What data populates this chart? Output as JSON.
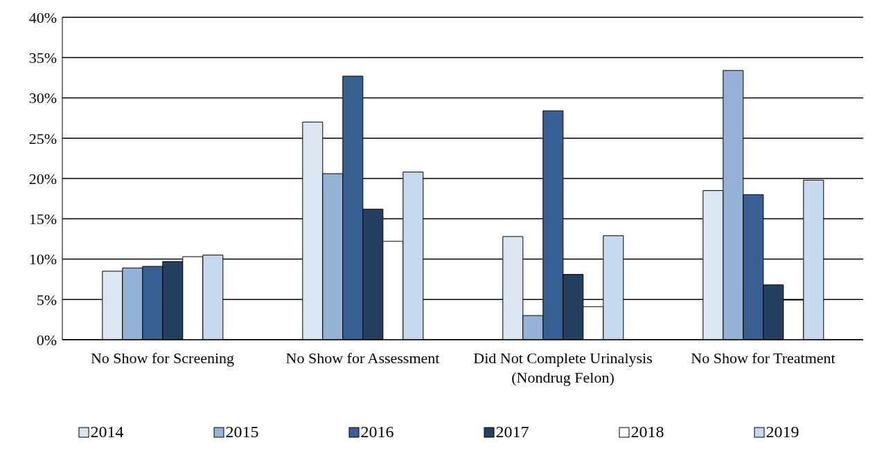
{
  "chart_data": {
    "type": "bar",
    "categories": [
      "No Show for Screening",
      "No Show for Assessment",
      "Did Not Complete Urinalysis (Nondrug Felon)",
      "No Show for Treatment"
    ],
    "series": [
      {
        "name": "2014",
        "color": "#dce6f2",
        "values": [
          8.5,
          27.0,
          12.8,
          18.5
        ]
      },
      {
        "name": "2015",
        "color": "#95b3d7",
        "values": [
          8.9,
          20.6,
          3.0,
          33.4
        ]
      },
      {
        "name": "2016",
        "color": "#376092",
        "values": [
          9.1,
          32.7,
          28.4,
          18.0
        ]
      },
      {
        "name": "2017",
        "color": "#243f60",
        "values": [
          9.7,
          16.2,
          8.1,
          6.8
        ]
      },
      {
        "name": "2018",
        "color": "#ffffff",
        "values": [
          10.3,
          12.2,
          4.1,
          4.9
        ]
      },
      {
        "name": "2019",
        "color": "#c6d9f1",
        "values": [
          10.5,
          20.8,
          12.9,
          19.8
        ]
      }
    ],
    "ylim": [
      0,
      40
    ],
    "yticks": [
      {
        "value": 0,
        "label": "0%"
      },
      {
        "value": 5,
        "label": "5%"
      },
      {
        "value": 10,
        "label": "10%"
      },
      {
        "value": 15,
        "label": "15%"
      },
      {
        "value": 20,
        "label": "20%"
      },
      {
        "value": 25,
        "label": "25%"
      },
      {
        "value": 30,
        "label": "30%"
      },
      {
        "value": 35,
        "label": "35%"
      },
      {
        "value": 40,
        "label": "40%"
      }
    ],
    "grid": "y",
    "legend": "bottom"
  }
}
